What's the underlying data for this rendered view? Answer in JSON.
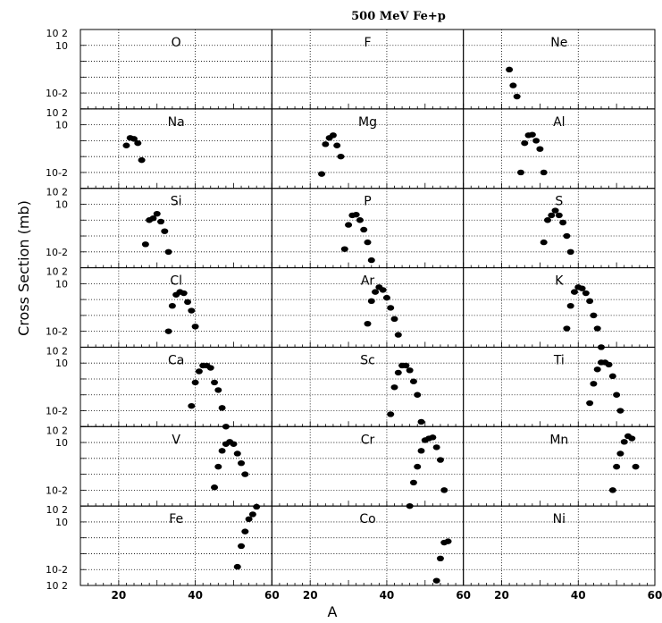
{
  "chart_data": {
    "type": "scatter",
    "title": "500 MeV Fe+p",
    "xlabel": "A",
    "ylabel": "Cross Section (mb)",
    "grid": true,
    "yscale": "log",
    "xlim": [
      10,
      60
    ],
    "ylim": [
      0.001,
      100
    ],
    "x_ticks": [
      "20",
      "40",
      "60"
    ],
    "y_ticks": [
      "10",
      "10-2",
      "10 2"
    ],
    "panels": [
      {
        "element": "O",
        "points": []
      },
      {
        "element": "F",
        "points": []
      },
      {
        "element": "Ne",
        "points": [
          [
            22,
            0.3
          ],
          [
            23,
            0.03
          ],
          [
            24,
            0.006
          ]
        ]
      },
      {
        "element": "Na",
        "points": [
          [
            22,
            0.5
          ],
          [
            23,
            1.5
          ],
          [
            24,
            1.3
          ],
          [
            25,
            0.7
          ],
          [
            26,
            0.06
          ]
        ]
      },
      {
        "element": "Mg",
        "points": [
          [
            23,
            0.008
          ],
          [
            24,
            0.6
          ],
          [
            25,
            1.5
          ],
          [
            26,
            2.2
          ],
          [
            27,
            0.5
          ],
          [
            28,
            0.1
          ]
        ]
      },
      {
        "element": "Al",
        "points": [
          [
            25,
            0.01
          ],
          [
            26,
            0.7
          ],
          [
            27,
            2.2
          ],
          [
            28,
            2.4
          ],
          [
            29,
            1.0
          ],
          [
            30,
            0.3
          ],
          [
            31,
            0.01
          ]
        ]
      },
      {
        "element": "Si",
        "points": [
          [
            27,
            0.03
          ],
          [
            28,
            1.0
          ],
          [
            29,
            1.3
          ],
          [
            30,
            2.5
          ],
          [
            31,
            0.8
          ],
          [
            32,
            0.2
          ],
          [
            33,
            0.01
          ]
        ]
      },
      {
        "element": "P",
        "points": [
          [
            29,
            0.015
          ],
          [
            30,
            0.5
          ],
          [
            31,
            2.0
          ],
          [
            32,
            2.2
          ],
          [
            33,
            1.0
          ],
          [
            34,
            0.25
          ],
          [
            35,
            0.04
          ],
          [
            36,
            0.003
          ]
        ]
      },
      {
        "element": "S",
        "points": [
          [
            31,
            0.04
          ],
          [
            32,
            1.0
          ],
          [
            33,
            2.0
          ],
          [
            34,
            4.0
          ],
          [
            35,
            2.0
          ],
          [
            36,
            0.7
          ],
          [
            37,
            0.1
          ],
          [
            38,
            0.01
          ]
        ]
      },
      {
        "element": "Cl",
        "points": [
          [
            33,
            0.01
          ],
          [
            34,
            0.4
          ],
          [
            35,
            2.0
          ],
          [
            36,
            3.0
          ],
          [
            37,
            2.5
          ],
          [
            38,
            0.7
          ],
          [
            39,
            0.2
          ],
          [
            40,
            0.02
          ]
        ]
      },
      {
        "element": "Ar",
        "points": [
          [
            35,
            0.03
          ],
          [
            36,
            0.8
          ],
          [
            37,
            3.0
          ],
          [
            38,
            6.0
          ],
          [
            39,
            4.0
          ],
          [
            40,
            1.3
          ],
          [
            41,
            0.3
          ],
          [
            42,
            0.06
          ],
          [
            43,
            0.006
          ]
        ]
      },
      {
        "element": "K",
        "points": [
          [
            37,
            0.015
          ],
          [
            38,
            0.4
          ],
          [
            39,
            3.0
          ],
          [
            40,
            6.0
          ],
          [
            41,
            5.0
          ],
          [
            42,
            2.5
          ],
          [
            43,
            0.8
          ],
          [
            44,
            0.1
          ],
          [
            45,
            0.015
          ],
          [
            46,
            0.001
          ]
        ]
      },
      {
        "element": "Ca",
        "points": [
          [
            39,
            0.02
          ],
          [
            40,
            0.6
          ],
          [
            41,
            3.0
          ],
          [
            42,
            7.0
          ],
          [
            43,
            7.0
          ],
          [
            44,
            5.0
          ],
          [
            45,
            0.6
          ],
          [
            46,
            0.2
          ],
          [
            47,
            0.015
          ],
          [
            48,
            0.001
          ]
        ]
      },
      {
        "element": "Sc",
        "points": [
          [
            41,
            0.006
          ],
          [
            42,
            0.3
          ],
          [
            43,
            2.5
          ],
          [
            44,
            7.0
          ],
          [
            45,
            7.0
          ],
          [
            46,
            3.5
          ],
          [
            47,
            0.7
          ],
          [
            48,
            0.1
          ],
          [
            49,
            0.002
          ]
        ]
      },
      {
        "element": "Ti",
        "points": [
          [
            43,
            0.03
          ],
          [
            44,
            0.5
          ],
          [
            45,
            4.0
          ],
          [
            46,
            11.0
          ],
          [
            47,
            11.0
          ],
          [
            48,
            8.0
          ],
          [
            49,
            1.5
          ],
          [
            50,
            0.1
          ],
          [
            51,
            0.01
          ]
        ]
      },
      {
        "element": "V",
        "points": [
          [
            45,
            0.015
          ],
          [
            46,
            0.3
          ],
          [
            47,
            3.0
          ],
          [
            48,
            8.0
          ],
          [
            49,
            11.0
          ],
          [
            50,
            8.0
          ],
          [
            51,
            2.0
          ],
          [
            52,
            0.5
          ],
          [
            53,
            0.1
          ]
        ]
      },
      {
        "element": "Cr",
        "points": [
          [
            46,
            0.001
          ],
          [
            47,
            0.03
          ],
          [
            48,
            0.3
          ],
          [
            49,
            3.0
          ],
          [
            50,
            14.0
          ],
          [
            51,
            18.0
          ],
          [
            52,
            21.0
          ],
          [
            53,
            5.0
          ],
          [
            54,
            0.8
          ],
          [
            55,
            0.01
          ]
        ]
      },
      {
        "element": "Mn",
        "points": [
          [
            49,
            0.01
          ],
          [
            50,
            0.3
          ],
          [
            51,
            2.0
          ],
          [
            52,
            11.0
          ],
          [
            53,
            25.0
          ],
          [
            54,
            18.0
          ],
          [
            55,
            0.3
          ]
        ]
      },
      {
        "element": "Fe",
        "points": [
          [
            51,
            0.015
          ],
          [
            52,
            0.3
          ],
          [
            53,
            2.5
          ],
          [
            54,
            15.0
          ],
          [
            55,
            30.0
          ],
          [
            56,
            90.0
          ]
        ]
      },
      {
        "element": "Co",
        "points": [
          [
            53,
            0.002
          ],
          [
            54,
            0.05
          ],
          [
            55,
            0.5
          ],
          [
            56,
            0.6
          ]
        ]
      },
      {
        "element": "Ni",
        "points": []
      }
    ]
  }
}
